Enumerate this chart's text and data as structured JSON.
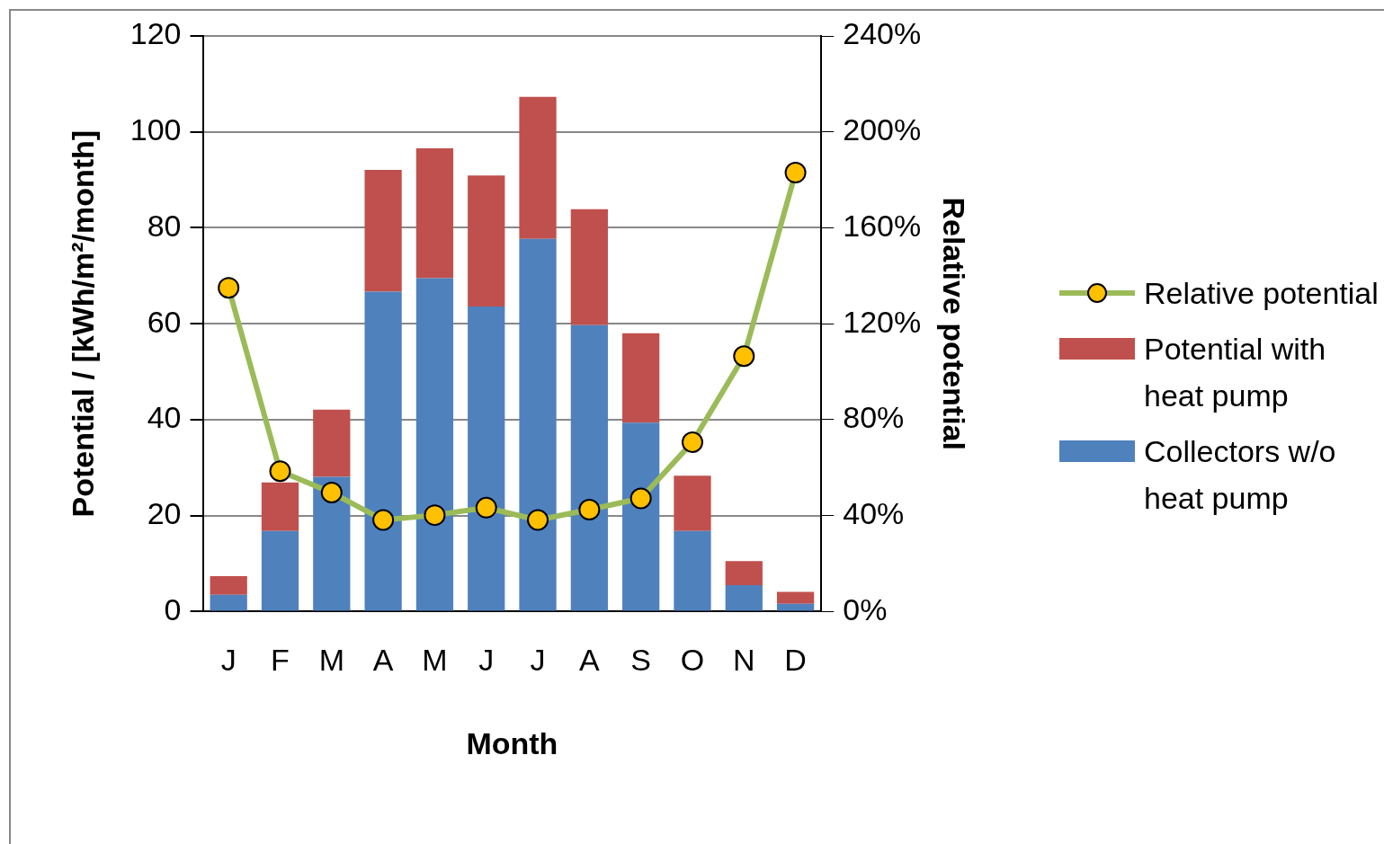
{
  "chart_data": {
    "type": "bar",
    "stacked": true,
    "xlabel": "Month",
    "ylabel": "Potential / [kWh/m²/month]",
    "y2label": "Relative potential",
    "categories": [
      "J",
      "F",
      "M",
      "A",
      "M",
      "J",
      "J",
      "A",
      "S",
      "O",
      "N",
      "D"
    ],
    "series": [
      {
        "name": "Collectors w/o heat pump",
        "color": "#4f81bd",
        "values": [
          3.5,
          16.8,
          28.1,
          66.7,
          69.5,
          63.6,
          77.7,
          59.7,
          39.4,
          16.8,
          5.5,
          1.6
        ]
      },
      {
        "name": "Potential with heat pump",
        "color": "#c0504d",
        "values": [
          3.9,
          10.1,
          14.0,
          25.4,
          27.1,
          27.3,
          29.6,
          24.2,
          18.6,
          11.5,
          5.0,
          2.5
        ]
      },
      {
        "name": "Relative potential",
        "type": "line",
        "axis": "y2",
        "color": "#9bbb59",
        "marker": "circle",
        "values": [
          135,
          58.5,
          49.6,
          38.2,
          40.2,
          43.3,
          38.2,
          42.5,
          47.2,
          70.6,
          106.5,
          183
        ]
      }
    ],
    "ylim": [
      0,
      120
    ],
    "yticks": [
      0,
      20,
      40,
      60,
      80,
      100,
      120
    ],
    "y2lim": [
      0,
      240
    ],
    "y2ticks": [
      {
        "value": 0,
        "label": "0%"
      },
      {
        "value": 40,
        "label": "40%"
      },
      {
        "value": 80,
        "label": "80%"
      },
      {
        "value": 120,
        "label": "120%"
      },
      {
        "value": 160,
        "label": "160%"
      },
      {
        "value": 200,
        "label": "200%"
      },
      {
        "value": 240,
        "label": "240%"
      }
    ],
    "grid": "y",
    "legend": "right"
  }
}
